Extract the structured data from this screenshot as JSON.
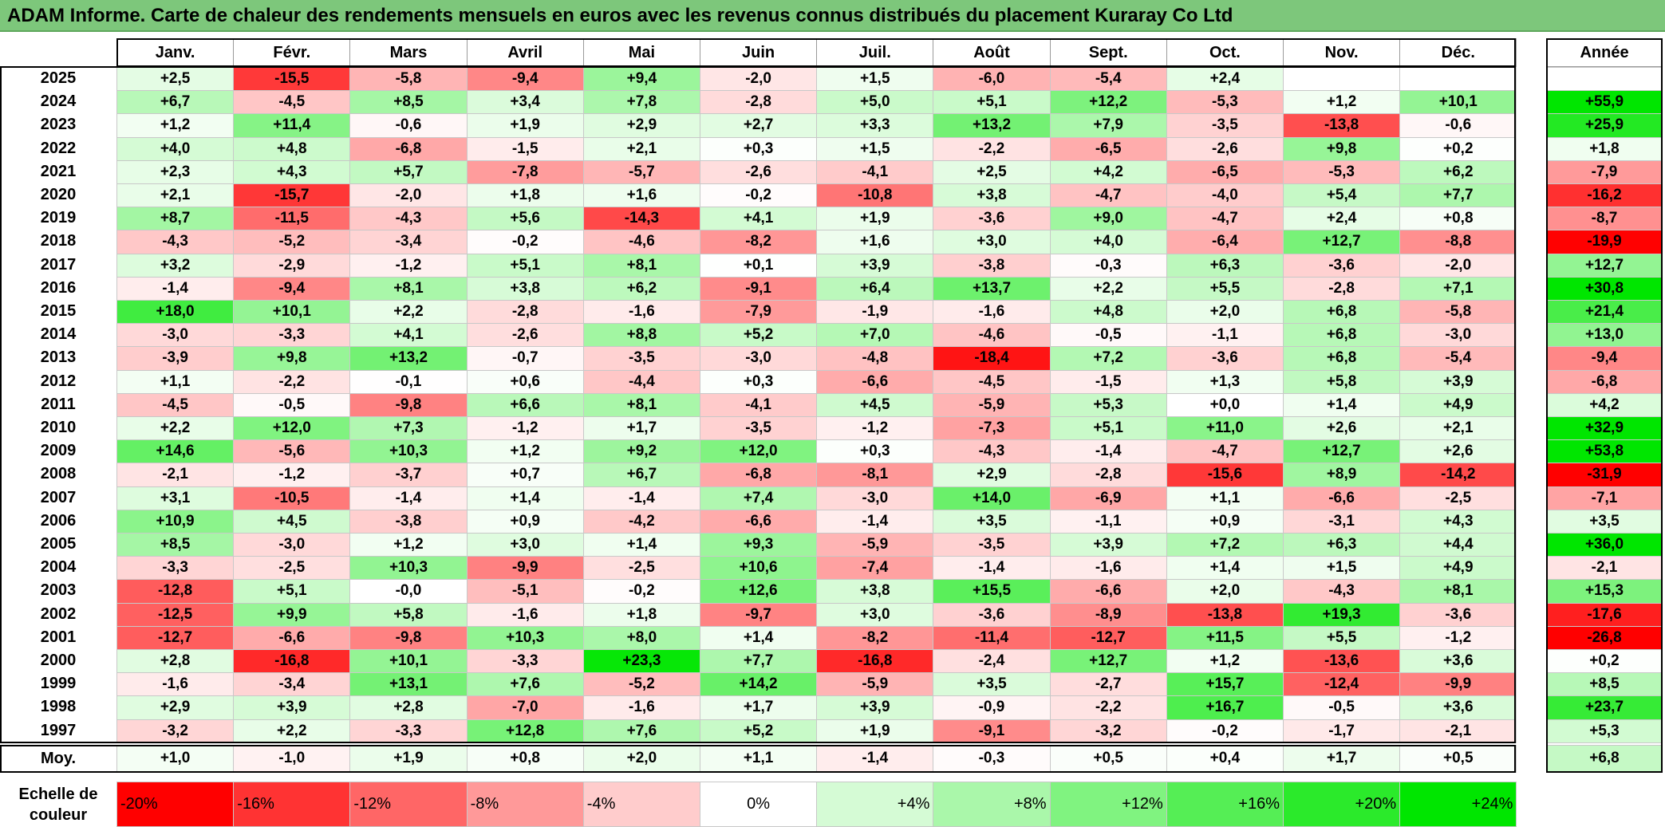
{
  "title": "ADAM Informe. Carte de chaleur des rendements mensuels en euros avec les revenus connus distribués du placement Kuraray Co Ltd",
  "colors": {
    "title_bg": "#7dc77b",
    "negative_max": "#ff0000",
    "neutral": "#ffffff",
    "positive_max": "#00e600"
  },
  "chart_data": {
    "type": "heatmap",
    "title": "ADAM Informe. Carte de chaleur des rendements mensuels en euros avec les revenus connus distribués du placement Kuraray Co Ltd",
    "months": [
      "Janv.",
      "Févr.",
      "Mars",
      "Avril",
      "Mai",
      "Juin",
      "Juil.",
      "Août",
      "Sept.",
      "Oct.",
      "Nov.",
      "Déc."
    ],
    "year_header": "Année",
    "rows": [
      {
        "year": "2025",
        "months": [
          "+2,5",
          "-15,5",
          "-5,8",
          "-9,4",
          "+9,4",
          "-2,0",
          "+1,5",
          "-6,0",
          "-5,4",
          "+2,4",
          "",
          ""
        ],
        "annual": ""
      },
      {
        "year": "2024",
        "months": [
          "+6,7",
          "-4,5",
          "+8,5",
          "+3,4",
          "+7,8",
          "-2,8",
          "+5,0",
          "+5,1",
          "+12,2",
          "-5,3",
          "+1,2",
          "+10,1"
        ],
        "annual": "+55,9"
      },
      {
        "year": "2023",
        "months": [
          "+1,2",
          "+11,4",
          "-0,6",
          "+1,9",
          "+2,9",
          "+2,7",
          "+3,3",
          "+13,2",
          "+7,9",
          "-3,5",
          "-13,8",
          "-0,6"
        ],
        "annual": "+25,9"
      },
      {
        "year": "2022",
        "months": [
          "+4,0",
          "+4,8",
          "-6,8",
          "-1,5",
          "+2,1",
          "+0,3",
          "+1,5",
          "-2,2",
          "-6,5",
          "-2,6",
          "+9,8",
          "+0,2"
        ],
        "annual": "+1,8"
      },
      {
        "year": "2021",
        "months": [
          "+2,3",
          "+4,3",
          "+5,7",
          "-7,8",
          "-5,7",
          "-2,6",
          "-4,1",
          "+2,5",
          "+4,2",
          "-6,5",
          "-5,3",
          "+6,2"
        ],
        "annual": "-7,9"
      },
      {
        "year": "2020",
        "months": [
          "+2,1",
          "-15,7",
          "-2,0",
          "+1,8",
          "+1,6",
          "-0,2",
          "-10,8",
          "+3,8",
          "-4,7",
          "-4,0",
          "+5,4",
          "+7,7"
        ],
        "annual": "-16,2"
      },
      {
        "year": "2019",
        "months": [
          "+8,7",
          "-11,5",
          "-4,3",
          "+5,6",
          "-14,3",
          "+4,1",
          "+1,9",
          "-3,6",
          "+9,0",
          "-4,7",
          "+2,4",
          "+0,8"
        ],
        "annual": "-8,7"
      },
      {
        "year": "2018",
        "months": [
          "-4,3",
          "-5,2",
          "-3,4",
          "-0,2",
          "-4,6",
          "-8,2",
          "+1,6",
          "+3,0",
          "+4,0",
          "-6,4",
          "+12,7",
          "-8,8"
        ],
        "annual": "-19,9"
      },
      {
        "year": "2017",
        "months": [
          "+3,2",
          "-2,9",
          "-1,2",
          "+5,1",
          "+8,1",
          "+0,1",
          "+3,9",
          "-3,8",
          "-0,3",
          "+6,3",
          "-3,6",
          "-2,0"
        ],
        "annual": "+12,7"
      },
      {
        "year": "2016",
        "months": [
          "-1,4",
          "-9,4",
          "+8,1",
          "+3,8",
          "+6,2",
          "-9,1",
          "+6,4",
          "+13,7",
          "+2,2",
          "+5,5",
          "-2,8",
          "+7,1"
        ],
        "annual": "+30,8"
      },
      {
        "year": "2015",
        "months": [
          "+18,0",
          "+10,1",
          "+2,2",
          "-2,8",
          "-1,6",
          "-7,9",
          "-1,9",
          "-1,6",
          "+4,8",
          "+2,0",
          "+6,8",
          "-5,8"
        ],
        "annual": "+21,4"
      },
      {
        "year": "2014",
        "months": [
          "-3,0",
          "-3,3",
          "+4,1",
          "-2,6",
          "+8,8",
          "+5,2",
          "+7,0",
          "-4,6",
          "-0,5",
          "-1,1",
          "+6,8",
          "-3,0"
        ],
        "annual": "+13,0"
      },
      {
        "year": "2013",
        "months": [
          "-3,9",
          "+9,8",
          "+13,2",
          "-0,7",
          "-3,5",
          "-3,0",
          "-4,8",
          "-18,4",
          "+7,2",
          "-3,6",
          "+6,8",
          "-5,4"
        ],
        "annual": "-9,4"
      },
      {
        "year": "2012",
        "months": [
          "+1,1",
          "-2,2",
          "-0,1",
          "+0,6",
          "-4,4",
          "+0,3",
          "-6,6",
          "-4,5",
          "-1,5",
          "+1,3",
          "+5,8",
          "+3,9"
        ],
        "annual": "-6,8"
      },
      {
        "year": "2011",
        "months": [
          "-4,5",
          "-0,5",
          "-9,8",
          "+6,6",
          "+8,1",
          "-4,1",
          "+4,5",
          "-5,9",
          "+5,3",
          "+0,0",
          "+1,4",
          "+4,9"
        ],
        "annual": "+4,2"
      },
      {
        "year": "2010",
        "months": [
          "+2,2",
          "+12,0",
          "+7,3",
          "-1,2",
          "+1,7",
          "-3,5",
          "-1,2",
          "-7,3",
          "+5,1",
          "+11,0",
          "+2,6",
          "+2,1"
        ],
        "annual": "+32,9"
      },
      {
        "year": "2009",
        "months": [
          "+14,6",
          "-5,6",
          "+10,3",
          "+1,2",
          "+9,2",
          "+12,0",
          "+0,3",
          "-4,3",
          "-1,4",
          "-4,7",
          "+12,7",
          "+2,6"
        ],
        "annual": "+53,8"
      },
      {
        "year": "2008",
        "months": [
          "-2,1",
          "-1,2",
          "-3,7",
          "+0,7",
          "+6,7",
          "-6,8",
          "-8,1",
          "+2,9",
          "-2,8",
          "-15,6",
          "+8,9",
          "-14,2"
        ],
        "annual": "-31,9"
      },
      {
        "year": "2007",
        "months": [
          "+3,1",
          "-10,5",
          "-1,4",
          "+1,4",
          "-1,4",
          "+7,4",
          "-3,0",
          "+14,0",
          "-6,9",
          "+1,1",
          "-6,6",
          "-2,5"
        ],
        "annual": "-7,1"
      },
      {
        "year": "2006",
        "months": [
          "+10,9",
          "+4,5",
          "-3,8",
          "+0,9",
          "-4,2",
          "-6,6",
          "-1,4",
          "+3,5",
          "-1,1",
          "+0,9",
          "-3,1",
          "+4,3"
        ],
        "annual": "+3,5"
      },
      {
        "year": "2005",
        "months": [
          "+8,5",
          "-3,0",
          "+1,2",
          "+3,0",
          "+1,4",
          "+9,3",
          "-5,9",
          "-3,5",
          "+3,9",
          "+7,2",
          "+6,3",
          "+4,4"
        ],
        "annual": "+36,0"
      },
      {
        "year": "2004",
        "months": [
          "-3,3",
          "-2,5",
          "+10,3",
          "-9,9",
          "-2,5",
          "+10,6",
          "-7,4",
          "-1,4",
          "-1,6",
          "+1,4",
          "+1,5",
          "+4,9"
        ],
        "annual": "-2,1"
      },
      {
        "year": "2003",
        "months": [
          "-12,8",
          "+5,1",
          "-0,0",
          "-5,1",
          "-0,2",
          "+12,6",
          "+3,8",
          "+15,5",
          "-6,6",
          "+2,0",
          "-4,3",
          "+8,1"
        ],
        "annual": "+15,3"
      },
      {
        "year": "2002",
        "months": [
          "-12,5",
          "+9,9",
          "+5,8",
          "-1,6",
          "+1,8",
          "-9,7",
          "+3,0",
          "-3,6",
          "-8,9",
          "-13,8",
          "+19,3",
          "-3,6"
        ],
        "annual": "-17,6"
      },
      {
        "year": "2001",
        "months": [
          "-12,7",
          "-6,6",
          "-9,8",
          "+10,3",
          "+8,0",
          "+1,4",
          "-8,2",
          "-11,4",
          "-12,7",
          "+11,5",
          "+5,5",
          "-1,2"
        ],
        "annual": "-26,8"
      },
      {
        "year": "2000",
        "months": [
          "+2,8",
          "-16,8",
          "+10,1",
          "-3,3",
          "+23,3",
          "+7,7",
          "-16,8",
          "-2,4",
          "+12,7",
          "+1,2",
          "-13,6",
          "+3,6"
        ],
        "annual": "+0,2"
      },
      {
        "year": "1999",
        "months": [
          "-1,6",
          "-3,4",
          "+13,1",
          "+7,6",
          "-5,2",
          "+14,2",
          "-5,9",
          "+3,5",
          "-2,7",
          "+15,7",
          "-12,4",
          "-9,9"
        ],
        "annual": "+8,5"
      },
      {
        "year": "1998",
        "months": [
          "+2,9",
          "+3,9",
          "+2,8",
          "-7,0",
          "-1,6",
          "+1,7",
          "+3,9",
          "-0,9",
          "-2,2",
          "+16,7",
          "-0,5",
          "+3,6"
        ],
        "annual": "+23,7"
      },
      {
        "year": "1997",
        "months": [
          "-3,2",
          "+2,2",
          "-3,3",
          "+12,8",
          "+7,6",
          "+5,2",
          "+1,9",
          "-9,1",
          "-3,2",
          "-0,2",
          "-1,7",
          "-2,1"
        ],
        "annual": "+5,3"
      }
    ],
    "average": {
      "label": "Moy.",
      "months": [
        "+1,0",
        "-1,0",
        "+1,9",
        "+0,8",
        "+2,0",
        "+1,1",
        "-1,4",
        "-0,3",
        "+0,5",
        "+0,4",
        "+1,7",
        "+0,5"
      ],
      "annual": "+6,8"
    },
    "legend": {
      "label": "Echelle de couleur",
      "entries": [
        "-20%",
        "-16%",
        "-12%",
        "-8%",
        "-4%",
        "0%",
        "+4%",
        "+8%",
        "+12%",
        "+16%",
        "+20%",
        "+24%"
      ],
      "values": [
        -20,
        -16,
        -12,
        -8,
        -4,
        0,
        4,
        8,
        12,
        16,
        20,
        24
      ]
    },
    "monthly_scale": {
      "min": -20,
      "max": 24
    },
    "annual_scale": {
      "min": -20,
      "max": 30
    }
  }
}
